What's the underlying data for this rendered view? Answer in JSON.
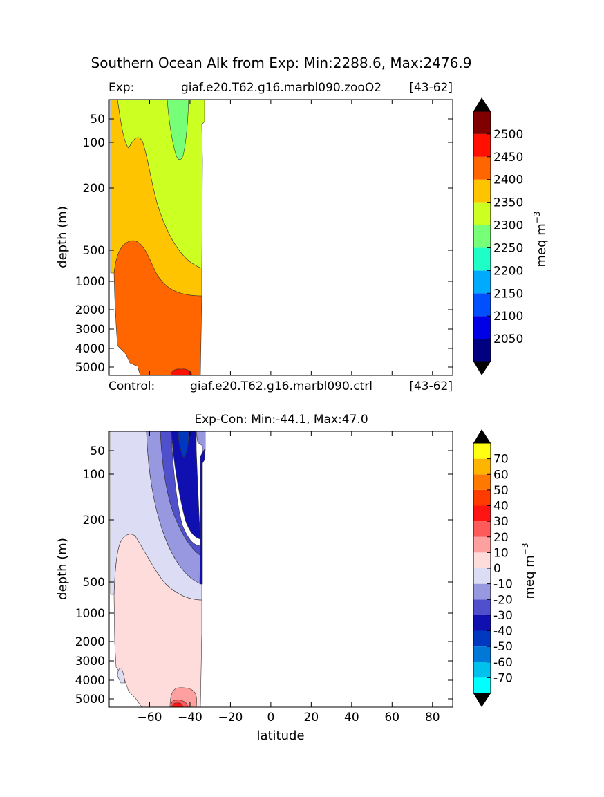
{
  "title": "Southern Ocean Alk from Exp: Min:2288.6, Max:2476.9",
  "chart_data": [
    {
      "type": "contour",
      "exp_label": "Exp:",
      "exp_name": "giaf.e20.T62.g16.marbl090.zooO2",
      "exp_range": "[43-62]",
      "ylabel": "depth (m)",
      "yticks": [
        "50",
        "100",
        "200",
        "500",
        "1000",
        "2000",
        "3000",
        "4000",
        "5000"
      ],
      "xlim": [
        -80,
        90
      ],
      "colorbar": {
        "label": "meq m",
        "label_exp": "−3",
        "ticks": [
          "2500",
          "2450",
          "2400",
          "2350",
          "2300",
          "2250",
          "2200",
          "2150",
          "2100",
          "2050"
        ],
        "levels": [
          2000,
          2050,
          2100,
          2150,
          2200,
          2250,
          2300,
          2350,
          2400,
          2450,
          2500,
          2550
        ],
        "colors": [
          "#000080",
          "#0000e6",
          "#0050ff",
          "#00aaff",
          "#1effc8",
          "#78ff78",
          "#ccff22",
          "#ffc400",
          "#ff6600",
          "#ff1000",
          "#800000"
        ],
        "under": "#000000",
        "over": "#000000"
      }
    },
    {
      "type": "contour",
      "control_label": "Control:",
      "control_name": "giaf.e20.T62.g16.marbl090.ctrl",
      "control_range": "[43-62]",
      "title": "Exp-Con: Min:-44.1, Max:47.0",
      "xlabel": "latitude",
      "ylabel": "depth (m)",
      "xticks": [
        "−60",
        "−40",
        "−20",
        "0",
        "20",
        "40",
        "60",
        "80"
      ],
      "yticks": [
        "50",
        "100",
        "200",
        "500",
        "1000",
        "2000",
        "3000",
        "4000",
        "5000"
      ],
      "xlim": [
        -80,
        90
      ],
      "colorbar": {
        "label": "meq m",
        "label_exp": "−3",
        "ticks": [
          "70",
          "60",
          "50",
          "40",
          "30",
          "20",
          "10",
          "0",
          "-10",
          "-20",
          "-30",
          "-40",
          "-50",
          "-60",
          "-70"
        ],
        "levels": [
          -80,
          -70,
          -60,
          -50,
          -40,
          -30,
          -20,
          -10,
          0,
          10,
          20,
          30,
          40,
          50,
          60,
          70,
          80
        ],
        "colors": [
          "#00ffff",
          "#00c0ee",
          "#0078d8",
          "#0038c0",
          "#1010b0",
          "#5050cc",
          "#9898e0",
          "#dcdcf4",
          "#ffdcdc",
          "#ffa0a0",
          "#ff5a5a",
          "#ff1414",
          "#ff3c00",
          "#ff7800",
          "#ffb400",
          "#ffff14"
        ],
        "under": "#000000",
        "over": "#000000"
      }
    }
  ]
}
